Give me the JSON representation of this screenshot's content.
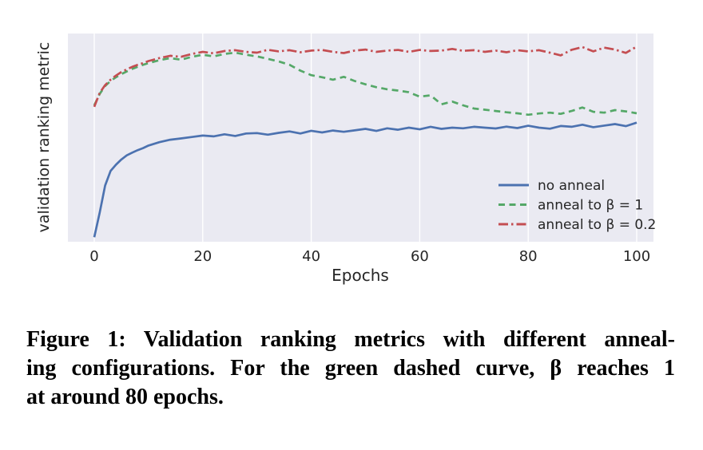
{
  "caption": {
    "lines": [
      "Figure 1: Validation ranking metrics with different anneal-",
      "ing configurations. For the green dashed curve, β reaches 1",
      "at around 80 epochs."
    ],
    "full_text": "Figure 1: Validation ranking metrics with different annealing configurations. For the green dashed curve, β reaches 1 at around 80 epochs."
  },
  "chart_data": {
    "type": "line",
    "title": "",
    "xlabel": "Epochs",
    "ylabel": "validation ranking metric",
    "xlim": [
      -5,
      103
    ],
    "ylim": [
      0,
      1
    ],
    "x_ticks": [
      0,
      20,
      40,
      60,
      80,
      100
    ],
    "y_ticks": [],
    "grid": "vertical white gridlines only",
    "background_color": "#eaeaf2",
    "gridline_color": "#ffffff",
    "text_color": "#262626",
    "legend_position": "center-right inside axes, no frame",
    "y_units_note": "y-axis shows no tick labels; y values below are normalized fractions of the plot height (0 = bottom, 1 = top)",
    "series": [
      {
        "name": "no anneal",
        "color": "#4c72b0",
        "style": "solid",
        "x": [
          0,
          1,
          2,
          3,
          4,
          5,
          6,
          7,
          8,
          9,
          10,
          12,
          14,
          16,
          18,
          20,
          22,
          24,
          26,
          28,
          30,
          32,
          34,
          36,
          38,
          40,
          42,
          44,
          46,
          48,
          50,
          52,
          54,
          56,
          58,
          60,
          62,
          64,
          66,
          68,
          70,
          72,
          74,
          76,
          78,
          80,
          82,
          84,
          86,
          88,
          90,
          92,
          94,
          96,
          98,
          100
        ],
        "y": [
          0.022,
          0.14,
          0.27,
          0.34,
          0.37,
          0.395,
          0.415,
          0.428,
          0.44,
          0.45,
          0.462,
          0.478,
          0.49,
          0.496,
          0.503,
          0.51,
          0.506,
          0.516,
          0.508,
          0.52,
          0.522,
          0.514,
          0.523,
          0.53,
          0.52,
          0.533,
          0.525,
          0.534,
          0.528,
          0.535,
          0.542,
          0.532,
          0.545,
          0.538,
          0.548,
          0.54,
          0.552,
          0.542,
          0.548,
          0.545,
          0.552,
          0.548,
          0.544,
          0.553,
          0.546,
          0.557,
          0.548,
          0.543,
          0.556,
          0.552,
          0.562,
          0.55,
          0.558,
          0.565,
          0.555,
          0.572
        ]
      },
      {
        "name": "anneal to β = 1",
        "color": "#55a868",
        "style": "dashed",
        "x": [
          0,
          1,
          2,
          3,
          4,
          5,
          6,
          7,
          8,
          9,
          10,
          12,
          14,
          16,
          18,
          20,
          22,
          24,
          26,
          28,
          30,
          32,
          34,
          36,
          38,
          40,
          42,
          44,
          46,
          48,
          50,
          52,
          54,
          56,
          58,
          60,
          62,
          64,
          66,
          68,
          70,
          72,
          74,
          76,
          78,
          80,
          82,
          84,
          86,
          88,
          90,
          92,
          94,
          96,
          98,
          100
        ],
        "y": [
          0.655,
          0.71,
          0.748,
          0.772,
          0.79,
          0.805,
          0.818,
          0.83,
          0.84,
          0.85,
          0.858,
          0.872,
          0.882,
          0.874,
          0.888,
          0.898,
          0.89,
          0.902,
          0.908,
          0.898,
          0.89,
          0.878,
          0.866,
          0.85,
          0.822,
          0.8,
          0.79,
          0.778,
          0.792,
          0.772,
          0.756,
          0.742,
          0.732,
          0.726,
          0.718,
          0.697,
          0.703,
          0.66,
          0.673,
          0.655,
          0.64,
          0.634,
          0.628,
          0.622,
          0.617,
          0.61,
          0.616,
          0.62,
          0.614,
          0.628,
          0.645,
          0.624,
          0.62,
          0.632,
          0.626,
          0.617
        ]
      },
      {
        "name": "anneal to β = 0.2",
        "color": "#c44e52",
        "style": "dashdot",
        "x": [
          0,
          1,
          2,
          3,
          4,
          5,
          6,
          7,
          8,
          9,
          10,
          12,
          14,
          16,
          18,
          20,
          22,
          24,
          26,
          28,
          30,
          32,
          34,
          36,
          38,
          40,
          42,
          44,
          46,
          48,
          50,
          52,
          54,
          56,
          58,
          60,
          62,
          64,
          66,
          68,
          70,
          72,
          74,
          76,
          78,
          80,
          82,
          84,
          86,
          88,
          90,
          92,
          94,
          96,
          98,
          100
        ],
        "y": [
          0.648,
          0.715,
          0.752,
          0.778,
          0.798,
          0.815,
          0.828,
          0.84,
          0.85,
          0.858,
          0.868,
          0.882,
          0.893,
          0.888,
          0.902,
          0.912,
          0.905,
          0.916,
          0.92,
          0.912,
          0.908,
          0.922,
          0.914,
          0.92,
          0.91,
          0.918,
          0.921,
          0.912,
          0.906,
          0.918,
          0.923,
          0.912,
          0.918,
          0.921,
          0.912,
          0.921,
          0.916,
          0.918,
          0.926,
          0.917,
          0.92,
          0.912,
          0.918,
          0.91,
          0.92,
          0.914,
          0.92,
          0.908,
          0.895,
          0.922,
          0.935,
          0.914,
          0.932,
          0.923,
          0.907,
          0.937
        ]
      }
    ]
  }
}
